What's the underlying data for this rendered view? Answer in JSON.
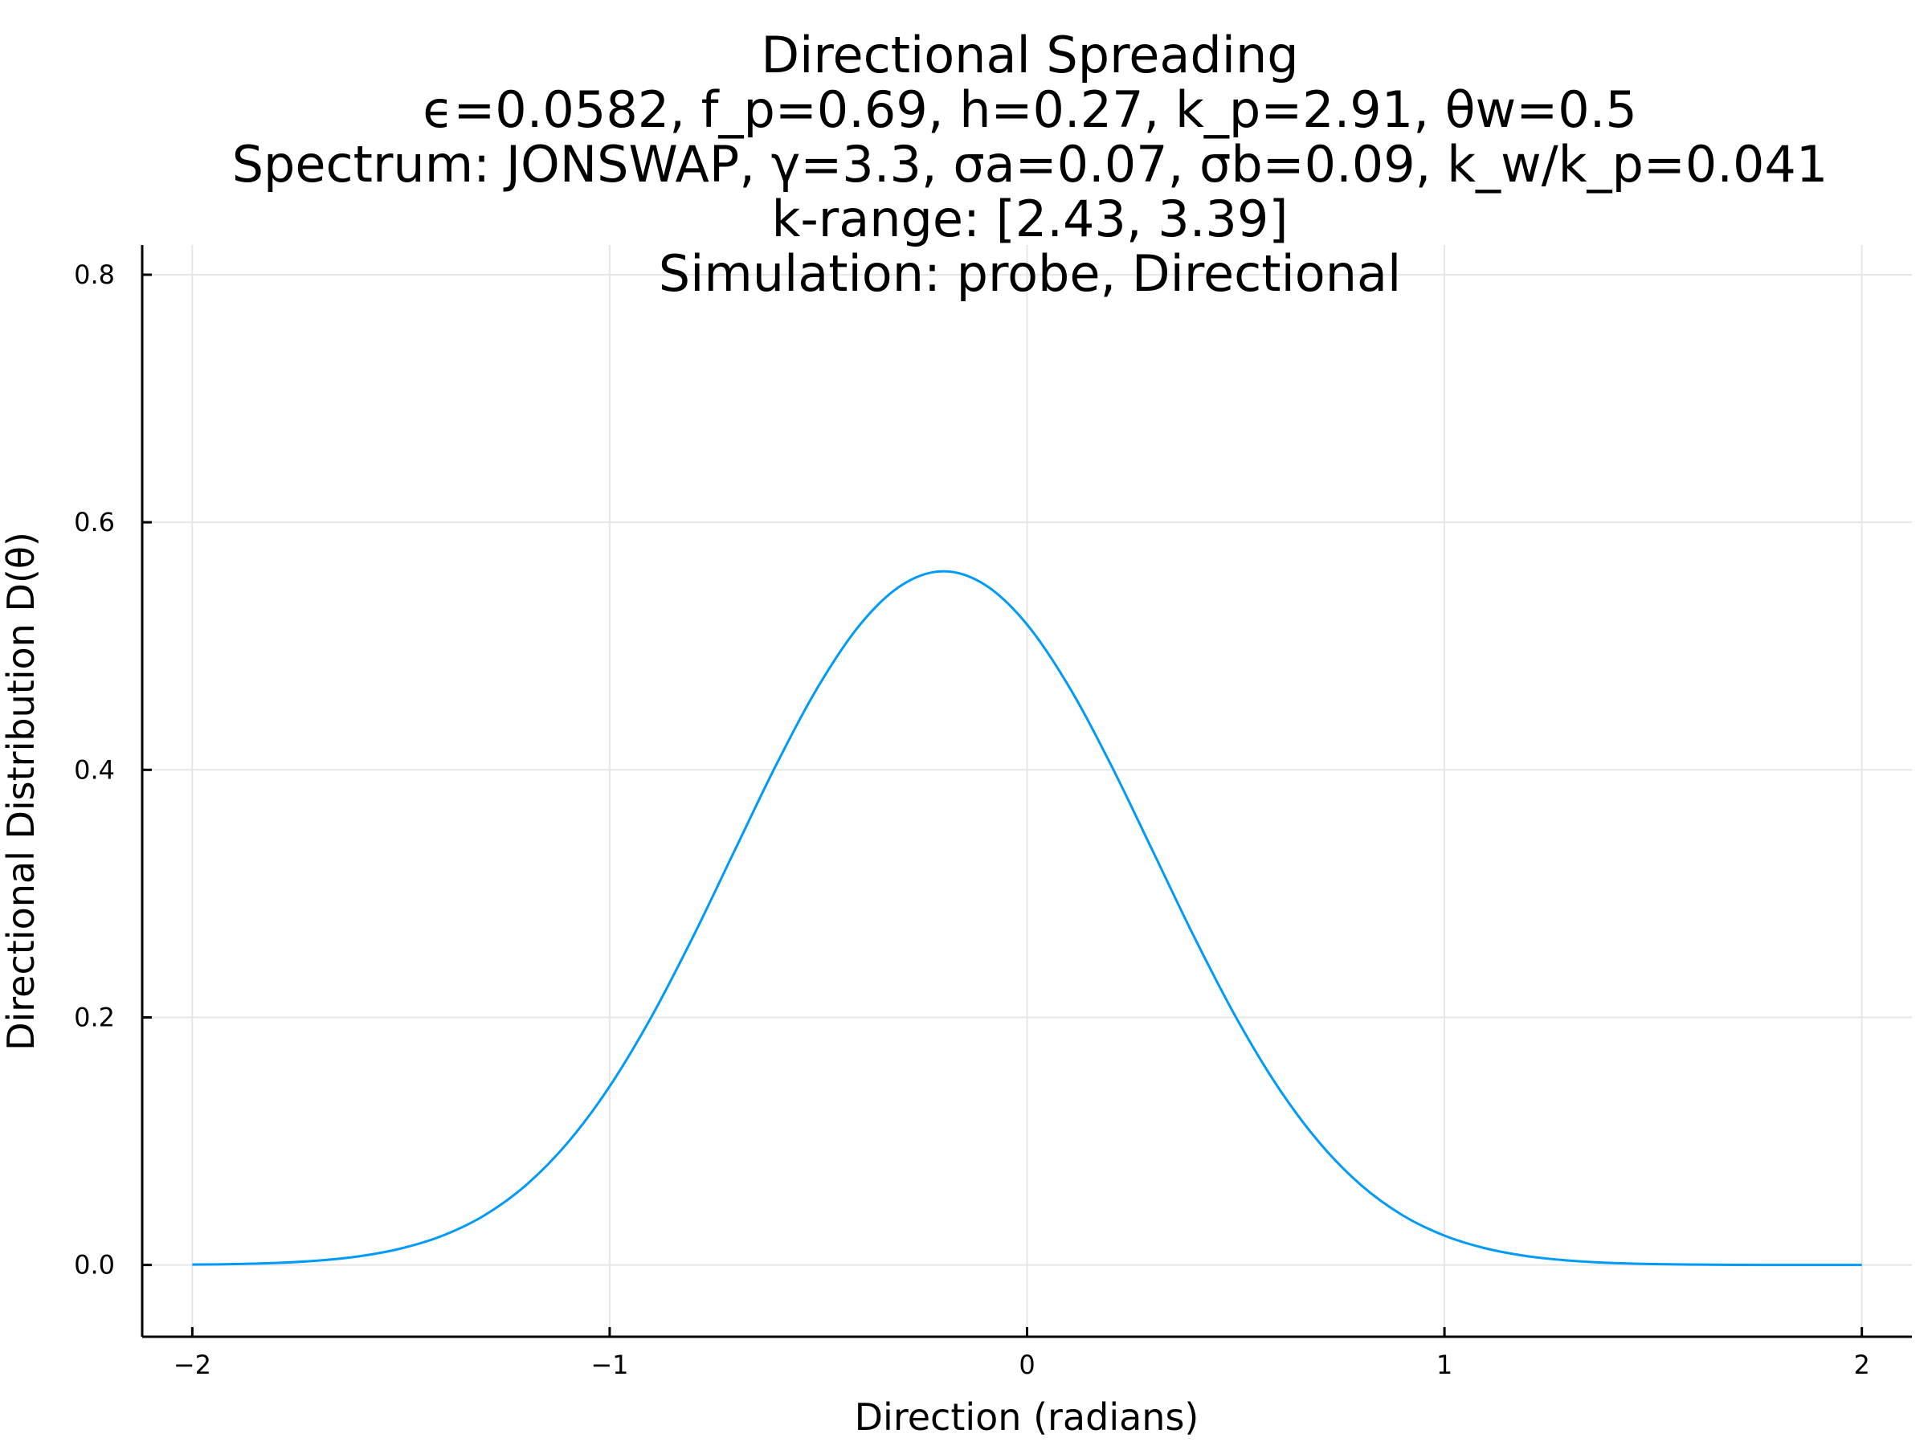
{
  "chart_data": {
    "type": "line",
    "title_lines": [
      "Directional Spreading",
      "ϵ=0.0582, f_p=0.69, h=0.27, k_p=2.91, θw=0.5",
      "Spectrum: JONSWAP, γ=3.3, σa=0.07, σb=0.09, k_w/k_p=0.041",
      "k-range: [2.43, 3.39]",
      "Simulation: probe, Directional"
    ],
    "xlabel": "Direction (radians)",
    "ylabel": "Directional Distribution D(θ)",
    "xlim": [
      -2.12,
      2.12
    ],
    "ylim": [
      -0.058,
      0.824
    ],
    "xticks": [
      -2,
      -1,
      0,
      1,
      2
    ],
    "xtick_labels": [
      "−2",
      "−1",
      "0",
      "1",
      "2"
    ],
    "yticks": [
      0.0,
      0.2,
      0.4,
      0.6,
      0.8
    ],
    "ytick_labels": [
      "0.0",
      "0.2",
      "0.4",
      "0.6",
      "0.8"
    ],
    "grid": true,
    "legend": "none",
    "series": [
      {
        "color": "#009af9",
        "x": [
          -2.0,
          -1.9,
          -1.8,
          -1.7,
          -1.6,
          -1.5,
          -1.4,
          -1.3,
          -1.2,
          -1.1,
          -1.0,
          -0.9,
          -0.8,
          -0.7,
          -0.6,
          -0.5,
          -0.4,
          -0.3,
          -0.2,
          -0.1,
          0.0,
          0.1,
          0.2,
          0.3,
          0.4,
          0.5,
          0.6,
          0.7,
          0.8,
          0.9,
          1.0,
          1.1,
          1.2,
          1.3,
          1.4,
          1.5,
          1.6,
          1.7,
          1.8,
          1.9,
          2.0
        ],
        "y": [
          0.0003,
          0.0007,
          0.0016,
          0.0035,
          0.007,
          0.0133,
          0.0237,
          0.0401,
          0.0646,
          0.099,
          0.1443,
          0.2004,
          0.2653,
          0.3352,
          0.4047,
          0.4675,
          0.5174,
          0.5493,
          0.5604,
          0.5493,
          0.5174,
          0.4675,
          0.4047,
          0.3352,
          0.2653,
          0.2004,
          0.1443,
          0.099,
          0.0646,
          0.0401,
          0.0237,
          0.0133,
          0.007,
          0.0035,
          0.0016,
          0.0007,
          0.0003,
          0.0001,
          0.0,
          0.0,
          0.0
        ]
      }
    ]
  }
}
